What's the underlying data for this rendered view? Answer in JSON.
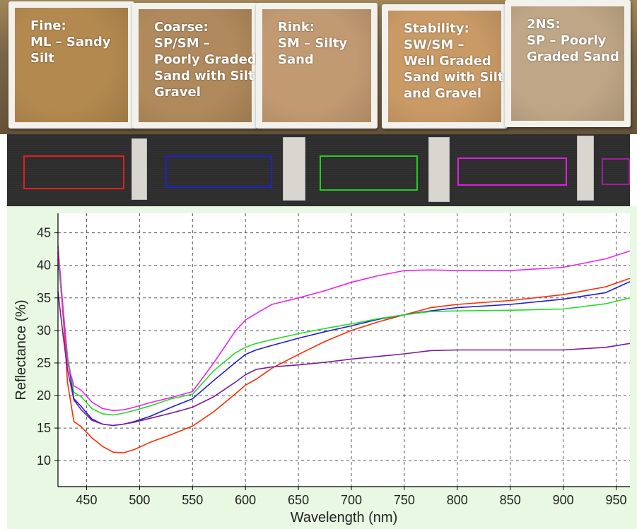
{
  "samples": [
    {
      "lines": [
        "Fine:",
        "ML – Sandy",
        "Silt"
      ],
      "soil_color": "#b3894f"
    },
    {
      "lines": [
        "Coarse:",
        "SP/SM –",
        "Poorly Graded",
        "Sand with Silt",
        "Gravel"
      ],
      "soil_color": "#b08a5c"
    },
    {
      "lines": [
        "Rink:",
        "SM – Silty",
        "Sand"
      ],
      "soil_color": "#c29a72"
    },
    {
      "lines": [
        "Stability:",
        "SW/SM –",
        "Well Graded",
        "Sand with Silt",
        "and Gravel"
      ],
      "soil_color": "#c99a66"
    },
    {
      "lines": [
        "2NS:",
        "SP – Poorly",
        "Graded Sand"
      ],
      "soil_color": "#bfa686"
    }
  ],
  "roi_colors": [
    "#e02020",
    "#2020c8",
    "#22cc22",
    "#e020e0",
    "#a020a0"
  ],
  "chart_data": {
    "type": "line",
    "xlabel": "Wavelength (nm)",
    "ylabel": "Reflectance (%)",
    "xlim": [
      423,
      963
    ],
    "ylim": [
      6,
      48
    ],
    "xticks": [
      450,
      500,
      550,
      600,
      650,
      700,
      750,
      800,
      850,
      900,
      950
    ],
    "yticks": [
      10,
      15,
      20,
      25,
      30,
      35,
      40,
      45
    ],
    "grid": true,
    "legend": "none",
    "series": [
      {
        "color": "#ff2a00",
        "x": [
          423,
          428,
          432,
          438,
          445,
          455,
          465,
          475,
          485,
          495,
          510,
          530,
          550,
          570,
          590,
          600,
          610,
          625,
          650,
          675,
          700,
          725,
          750,
          775,
          800,
          850,
          900,
          940,
          963
        ],
        "y": [
          42,
          32,
          22,
          16,
          15.2,
          13.5,
          12.2,
          11.3,
          11.2,
          11.7,
          12.8,
          14.0,
          15.3,
          17.5,
          20.2,
          21.6,
          22.5,
          24.2,
          26.3,
          28.3,
          30.0,
          31.3,
          32.4,
          33.5,
          34.0,
          34.6,
          35.5,
          36.7,
          38.0
        ]
      },
      {
        "color": "#1c1cdc",
        "x": [
          423,
          428,
          432,
          438,
          445,
          455,
          465,
          475,
          485,
          495,
          510,
          530,
          550,
          570,
          590,
          600,
          610,
          625,
          650,
          675,
          700,
          725,
          750,
          775,
          800,
          850,
          900,
          940,
          963
        ],
        "y": [
          41,
          33,
          26,
          19.5,
          18.3,
          16.4,
          15.6,
          15.4,
          15.6,
          16.0,
          16.8,
          18.2,
          19.5,
          22.3,
          25.0,
          26.3,
          27.0,
          27.7,
          28.8,
          29.8,
          30.7,
          31.7,
          32.4,
          33.0,
          33.5,
          34.0,
          34.8,
          35.8,
          37.5
        ]
      },
      {
        "color": "#22dd22",
        "x": [
          423,
          428,
          432,
          438,
          445,
          455,
          465,
          475,
          485,
          495,
          510,
          530,
          550,
          570,
          590,
          600,
          610,
          625,
          650,
          675,
          700,
          725,
          750,
          775,
          800,
          850,
          900,
          940,
          963
        ],
        "y": [
          41,
          33,
          26,
          20.5,
          19.8,
          18.0,
          17.2,
          17.0,
          17.3,
          17.7,
          18.4,
          19.5,
          20.2,
          23.8,
          26.5,
          27.4,
          28.0,
          28.6,
          29.5,
          30.3,
          31.0,
          31.8,
          32.4,
          32.9,
          33.0,
          33.1,
          33.3,
          34.1,
          35.0
        ]
      },
      {
        "color": "#ee22ee",
        "x": [
          423,
          428,
          432,
          438,
          445,
          455,
          465,
          475,
          485,
          495,
          510,
          530,
          550,
          570,
          590,
          600,
          610,
          625,
          650,
          675,
          700,
          725,
          750,
          775,
          800,
          850,
          900,
          940,
          963
        ],
        "y": [
          43,
          33,
          25,
          21.5,
          20.8,
          19.0,
          18.0,
          17.7,
          17.8,
          18.2,
          18.9,
          19.7,
          20.6,
          25.0,
          29.8,
          31.6,
          32.6,
          34.0,
          35.0,
          36.1,
          37.4,
          38.4,
          39.2,
          39.3,
          39.2,
          39.2,
          39.7,
          41.0,
          42.2
        ]
      },
      {
        "color": "#7a1a9a",
        "x": [
          423,
          428,
          432,
          438,
          445,
          455,
          465,
          475,
          485,
          495,
          510,
          530,
          550,
          570,
          590,
          600,
          610,
          625,
          650,
          675,
          700,
          725,
          750,
          775,
          800,
          850,
          900,
          940,
          963
        ],
        "y": [
          36,
          29,
          24,
          19.3,
          17.8,
          16.2,
          15.6,
          15.4,
          15.6,
          15.9,
          16.5,
          17.3,
          18.2,
          19.8,
          22.0,
          23.2,
          24.0,
          24.4,
          24.7,
          25.1,
          25.6,
          26.0,
          26.4,
          26.9,
          27.0,
          27.0,
          27.0,
          27.4,
          28.0
        ]
      }
    ]
  }
}
